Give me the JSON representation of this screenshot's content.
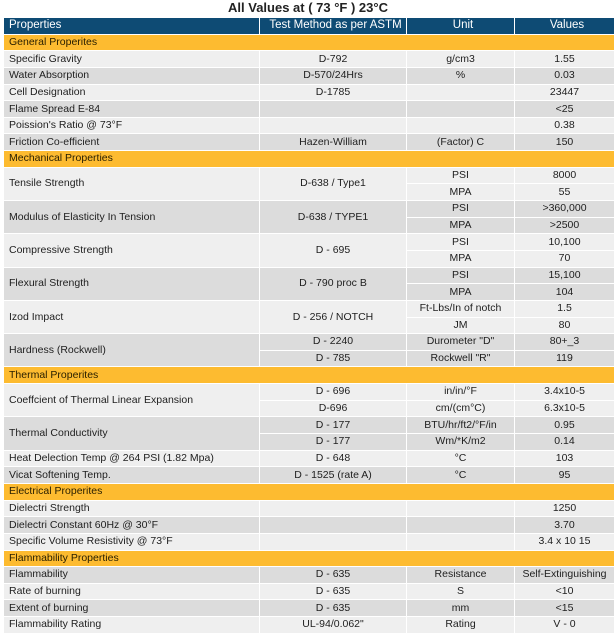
{
  "title": "All Values at ( 73 °F ) 23°C",
  "colors": {
    "header": "#0e4b74",
    "section": "#fdbb30",
    "row_light": "#efefef",
    "row_dark": "#dcdcdc"
  },
  "columns": [
    "Properties",
    "Test Method as per ASTM",
    "Unit",
    "Values"
  ],
  "sections": [
    {
      "name": "General Properites",
      "rows": [
        {
          "property": "Specific Gravity",
          "sub": [
            {
              "method": "D-792",
              "unit": "g/cm3",
              "value": "1.55"
            }
          ]
        },
        {
          "property": "Water Absorption",
          "sub": [
            {
              "method": "D-570/24Hrs",
              "unit": "%",
              "value": "0.03"
            }
          ]
        },
        {
          "property": "Cell Designation",
          "sub": [
            {
              "method": "D-1785",
              "unit": "",
              "value": "23447"
            }
          ]
        },
        {
          "property": "Flame Spread E-84",
          "sub": [
            {
              "method": "",
              "unit": "",
              "value": "<25"
            }
          ]
        },
        {
          "property": "Poission's Ratio @ 73°F",
          "sub": [
            {
              "method": "",
              "unit": "",
              "value": "0.38"
            }
          ]
        },
        {
          "property": "Friction Co-efficient",
          "sub": [
            {
              "method": "Hazen-William",
              "unit": "(Factor) C",
              "value": "150"
            }
          ]
        }
      ]
    },
    {
      "name": "Mechanical Properties",
      "rows": [
        {
          "property": "Tensile Strength",
          "method": "D-638 / Type1",
          "sub": [
            {
              "unit": "PSI",
              "value": "8000"
            },
            {
              "unit": "MPA",
              "value": "55"
            }
          ]
        },
        {
          "property": "Modulus of Elasticity In Tension",
          "method": "D-638 / TYPE1",
          "sub": [
            {
              "unit": "PSI",
              "value": ">360,000"
            },
            {
              "unit": "MPA",
              "value": ">2500"
            }
          ]
        },
        {
          "property": "Compressive Strength",
          "method": "D - 695",
          "sub": [
            {
              "unit": "PSI",
              "value": "10,100"
            },
            {
              "unit": "MPA",
              "value": "70"
            }
          ]
        },
        {
          "property": "Flexural Strength",
          "method": "D - 790 proc B",
          "sub": [
            {
              "unit": "PSI",
              "value": "15,100"
            },
            {
              "unit": "MPA",
              "value": "104"
            }
          ]
        },
        {
          "property": "Izod Impact",
          "method": "D - 256 / NOTCH",
          "sub": [
            {
              "unit": "Ft-Lbs/In of notch",
              "value": "1.5"
            },
            {
              "unit": "JM",
              "value": "80"
            }
          ]
        },
        {
          "property": "Hardness (Rockwell)",
          "sub": [
            {
              "method": "D - 2240",
              "unit": "Durometer \"D\"",
              "value": "80+_3"
            },
            {
              "method": "D - 785",
              "unit": "Rockwell \"R\"",
              "value": "119"
            }
          ]
        }
      ]
    },
    {
      "name": "Thermal Properites",
      "rows": [
        {
          "property": "Coeffcient of Thermal Linear Expansion",
          "sub": [
            {
              "method": "D - 696",
              "unit": "in/in/°F",
              "value": "3.4x10-5"
            },
            {
              "method": "D-696",
              "unit": "cm/(cm°C)",
              "value": "6.3x10-5"
            }
          ]
        },
        {
          "property": "Thermal Conductivity",
          "sub": [
            {
              "method": "D - 177",
              "unit": "BTU/hr/ft2/°F/in",
              "value": "0.95"
            },
            {
              "method": "D - 177",
              "unit": "Wm/*K/m2",
              "value": "0.14"
            }
          ]
        },
        {
          "property": "Heat Delection Temp @ 264 PSI (1.82 Mpa)",
          "sub": [
            {
              "method": "D - 648",
              "unit": "°C",
              "value": "103"
            }
          ]
        },
        {
          "property": "Vicat Softening Temp.",
          "sub": [
            {
              "method": "D - 1525 (rate A)",
              "unit": "°C",
              "value": "95"
            }
          ]
        }
      ]
    },
    {
      "name": "Electrical Properites",
      "rows": [
        {
          "property": "Dielectri Strength",
          "sub": [
            {
              "method": "",
              "unit": "",
              "value": "1250"
            }
          ]
        },
        {
          "property": "Dielectri Constant 60Hz @ 30°F",
          "sub": [
            {
              "method": "",
              "unit": "",
              "value": "3.70"
            }
          ]
        },
        {
          "property": "Specific Volume Resistivity @ 73°F",
          "sub": [
            {
              "method": "",
              "unit": "",
              "value": "3.4 x 10 15"
            }
          ]
        }
      ]
    },
    {
      "name": "Flammability Properties",
      "rows": [
        {
          "property": "Flammability",
          "sub": [
            {
              "method": "D - 635",
              "unit": "Resistance",
              "value": "Self-Extinguishing"
            }
          ]
        },
        {
          "property": "Rate of burning",
          "sub": [
            {
              "method": "D - 635",
              "unit": "S",
              "value": "<10"
            }
          ]
        },
        {
          "property": "Extent of burning",
          "sub": [
            {
              "method": "D - 635",
              "unit": "mm",
              "value": "<15"
            }
          ]
        },
        {
          "property": "Flammability Rating",
          "sub": [
            {
              "method": "UL-94/0.062\"",
              "unit": "Rating",
              "value": "V - 0"
            }
          ]
        }
      ]
    }
  ]
}
